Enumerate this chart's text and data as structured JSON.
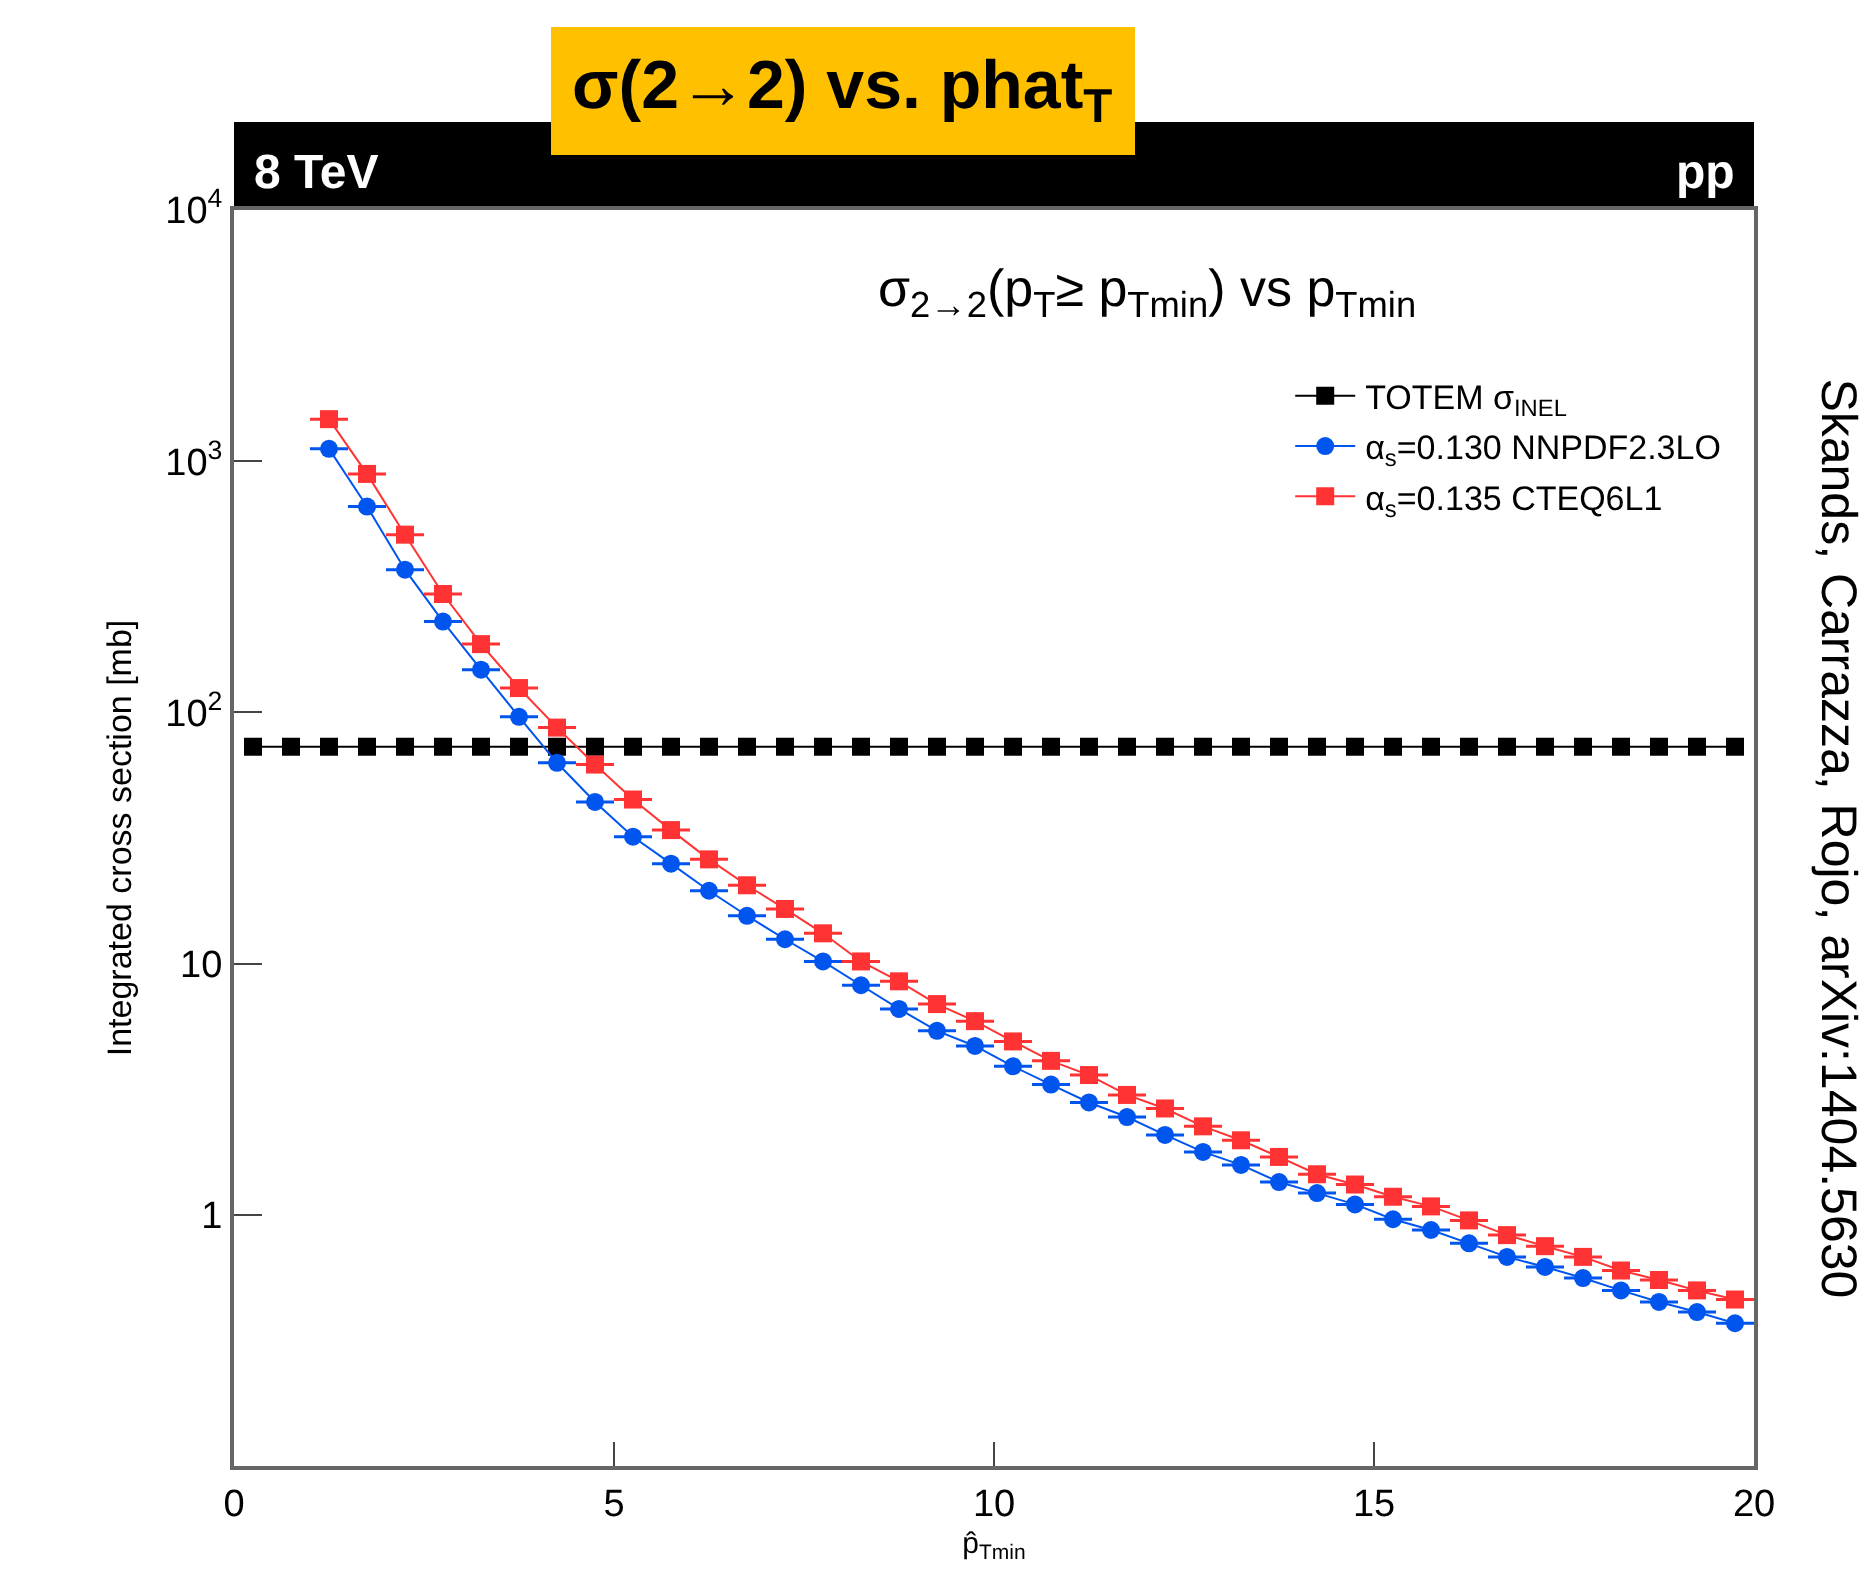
{
  "chart_data": {
    "type": "line",
    "title": "σ(2→2) vs. phat$_{T}$",
    "subtitle": "σ$_{2→2}$(p$_{T}$≥ p$_{Tmin}$) vs p$_{Tmin}$",
    "xlabel": "p̂$_{Tmin}$",
    "ylabel": "Integrated cross section [mb]",
    "annotations": [
      "8 TeV",
      "pp",
      "Skands, Carrazza, Rojo, arXiv:1404.5630"
    ],
    "log": "y",
    "xlim": [
      0,
      20
    ],
    "xticks": [
      0,
      5,
      10,
      15,
      20
    ],
    "ylim": [
      0.1,
      10000
    ],
    "yticks": [
      {
        "value": 10000,
        "label": "10$^{4}$"
      },
      {
        "value": 1000,
        "label": "10$^{3}$"
      },
      {
        "value": 100,
        "label": "10$^{2}$"
      },
      10,
      1
    ],
    "grid": false,
    "legend": "top right",
    "series": [
      {
        "name": "TOTEM σ$_{INEL}$",
        "color": "#000000",
        "marker": "square",
        "x": [
          0.25,
          0.75,
          1.25,
          1.75,
          2.25,
          2.75,
          3.25,
          3.75,
          4.25,
          4.75,
          5.25,
          5.75,
          6.25,
          6.75,
          7.25,
          7.75,
          8.25,
          8.75,
          9.25,
          9.75,
          10.25,
          10.75,
          11.25,
          11.75,
          12.25,
          12.75,
          13.25,
          13.75,
          14.25,
          14.75,
          15.25,
          15.75,
          16.25,
          16.75,
          17.25,
          17.75,
          18.25,
          18.75,
          19.25,
          19.75
        ],
        "values": [
          73,
          73,
          73,
          73,
          73,
          73,
          73,
          73,
          73,
          73,
          73,
          73,
          73,
          73,
          73,
          73,
          73,
          73,
          73,
          73,
          73,
          73,
          73,
          73,
          73,
          73,
          73,
          73,
          73,
          73,
          73,
          73,
          73,
          73,
          73,
          73,
          73,
          73,
          73,
          73
        ]
      },
      {
        "name": "α$_{s}$=0.130 NNPDF2.3LO",
        "color": "#0055ee",
        "marker": "circle",
        "x": [
          1.25,
          1.75,
          2.25,
          2.75,
          3.25,
          3.75,
          4.25,
          4.75,
          5.25,
          5.75,
          6.25,
          6.75,
          7.25,
          7.75,
          8.25,
          8.75,
          9.25,
          9.75,
          10.25,
          10.75,
          11.25,
          11.75,
          12.25,
          12.75,
          13.25,
          13.75,
          14.25,
          14.75,
          15.25,
          15.75,
          16.25,
          16.75,
          17.25,
          17.75,
          18.25,
          18.75,
          19.25,
          19.75
        ],
        "values": [
          1120,
          660,
          370,
          230,
          148,
          96,
          63,
          44,
          32,
          25,
          19.5,
          15.5,
          12.5,
          10.2,
          8.2,
          6.6,
          5.4,
          4.7,
          3.9,
          3.3,
          2.8,
          2.45,
          2.08,
          1.78,
          1.58,
          1.35,
          1.22,
          1.1,
          0.96,
          0.87,
          0.77,
          0.68,
          0.62,
          0.56,
          0.5,
          0.45,
          0.41,
          0.37
        ],
        "xerrors": [
          0.25,
          0.25,
          0.25,
          0.25,
          0.25,
          0.25,
          0.25,
          0.25,
          0.25,
          0.25,
          0.25,
          0.25,
          0.25,
          0.25,
          0.25,
          0.25,
          0.25,
          0.25,
          0.25,
          0.25,
          0.25,
          0.25,
          0.25,
          0.25,
          0.25,
          0.25,
          0.25,
          0.25,
          0.25,
          0.25,
          0.25,
          0.25,
          0.25,
          0.25,
          0.25,
          0.25,
          0.25,
          0.25
        ]
      },
      {
        "name": "α$_{s}$=0.135 CTEQ6L1",
        "color": "#ff3333",
        "marker": "square",
        "x": [
          1.25,
          1.75,
          2.25,
          2.75,
          3.25,
          3.75,
          4.25,
          4.75,
          5.25,
          5.75,
          6.25,
          6.75,
          7.25,
          7.75,
          8.25,
          8.75,
          9.25,
          9.75,
          10.25,
          10.75,
          11.25,
          11.75,
          12.25,
          12.75,
          13.25,
          13.75,
          14.25,
          14.75,
          15.25,
          15.75,
          16.25,
          16.75,
          17.25,
          17.75,
          18.25,
          18.75,
          19.25,
          19.75
        ],
        "values": [
          1470,
          890,
          510,
          296,
          187,
          125,
          87,
          62,
          45,
          34,
          26,
          20.5,
          16.5,
          13.2,
          10.2,
          8.5,
          6.9,
          5.9,
          4.9,
          4.1,
          3.6,
          3.0,
          2.65,
          2.25,
          1.98,
          1.7,
          1.45,
          1.32,
          1.18,
          1.08,
          0.95,
          0.83,
          0.75,
          0.68,
          0.6,
          0.55,
          0.5,
          0.46
        ],
        "xerrors": [
          0.25,
          0.25,
          0.25,
          0.25,
          0.25,
          0.25,
          0.25,
          0.25,
          0.25,
          0.25,
          0.25,
          0.25,
          0.25,
          0.25,
          0.25,
          0.25,
          0.25,
          0.25,
          0.25,
          0.25,
          0.25,
          0.25,
          0.25,
          0.25,
          0.25,
          0.25,
          0.25,
          0.25,
          0.25,
          0.25,
          0.25,
          0.25,
          0.25,
          0.25,
          0.25,
          0.25,
          0.25,
          0.25
        ]
      }
    ]
  }
}
